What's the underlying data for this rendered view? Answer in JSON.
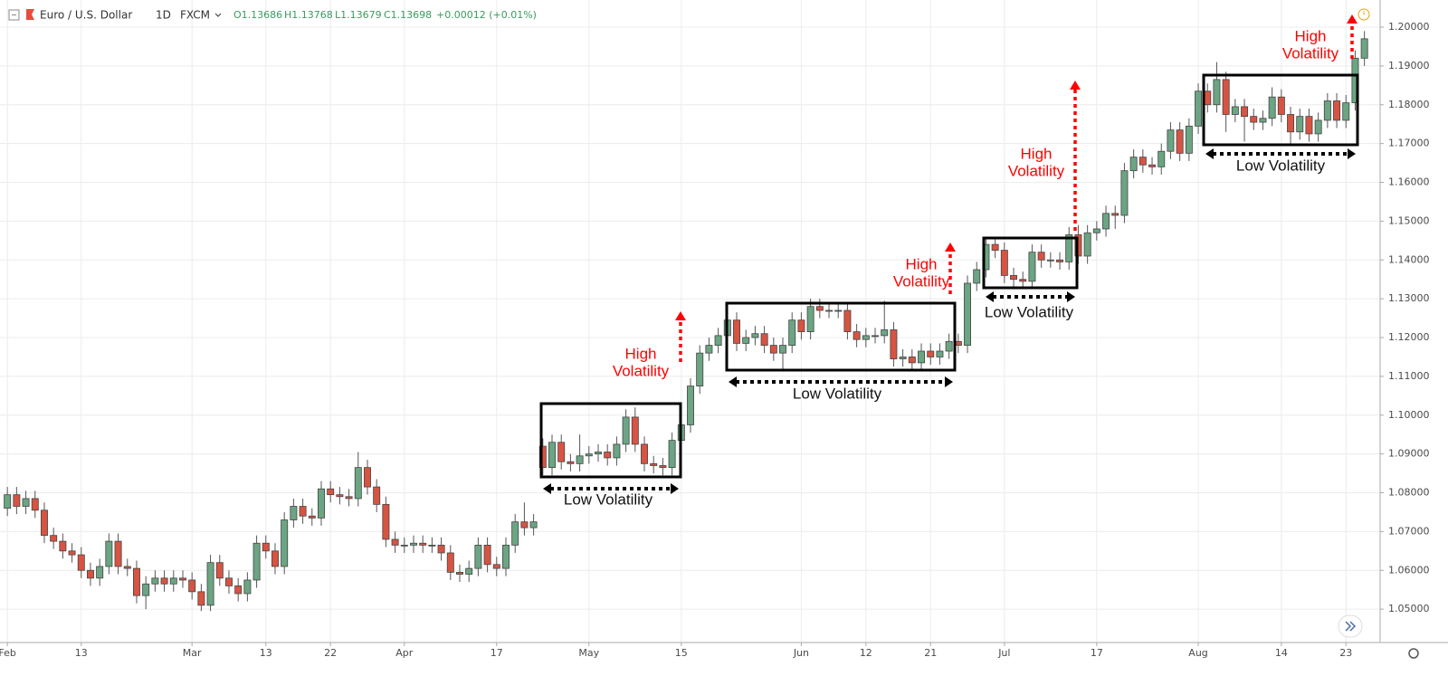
{
  "chart_data": {
    "type": "candlestick",
    "header": {
      "symbol": "Euro / U.S. Dollar",
      "interval": "1D",
      "source": "FXCM",
      "open": "O1.13686",
      "high": "H1.13768",
      "low": "L1.13679",
      "close": "C1.13698",
      "change": "+0.00012 (+0.01%)"
    },
    "up_color": "#6ba583",
    "down_color": "#d75442",
    "grid": true,
    "xlim": [
      -0.8,
      148.7
    ],
    "xticks": [
      {
        "value": 0,
        "label": "Feb"
      },
      {
        "value": 8,
        "label": "13"
      },
      {
        "value": 20,
        "label": "Mar"
      },
      {
        "value": 28,
        "label": "13"
      },
      {
        "value": 35,
        "label": "22"
      },
      {
        "value": 43,
        "label": "Apr"
      },
      {
        "value": 53,
        "label": "17"
      },
      {
        "value": 63,
        "label": "May"
      },
      {
        "value": 73,
        "label": "15"
      },
      {
        "value": 86,
        "label": "Jun"
      },
      {
        "value": 93,
        "label": "12"
      },
      {
        "value": 100,
        "label": "21"
      },
      {
        "value": 108,
        "label": "Jul"
      },
      {
        "value": 118,
        "label": "17"
      },
      {
        "value": 129,
        "label": "Aug"
      },
      {
        "value": 138,
        "label": "14"
      },
      {
        "value": 145,
        "label": "23"
      }
    ],
    "ylim": [
      1.0414,
      1.207
    ],
    "yticks": [
      {
        "value": 1.05,
        "label": "1.05000"
      },
      {
        "value": 1.06,
        "label": "1.06000"
      },
      {
        "value": 1.07,
        "label": "1.07000"
      },
      {
        "value": 1.08,
        "label": "1.08000"
      },
      {
        "value": 1.09,
        "label": "1.09000"
      },
      {
        "value": 1.1,
        "label": "1.10000"
      },
      {
        "value": 1.11,
        "label": "1.11000"
      },
      {
        "value": 1.12,
        "label": "1.12000"
      },
      {
        "value": 1.13,
        "label": "1.13000"
      },
      {
        "value": 1.14,
        "label": "1.14000"
      },
      {
        "value": 1.15,
        "label": "1.15000"
      },
      {
        "value": 1.16,
        "label": "1.16000"
      },
      {
        "value": 1.17,
        "label": "1.17000"
      },
      {
        "value": 1.18,
        "label": "1.18000"
      },
      {
        "value": 1.19,
        "label": "1.19000"
      },
      {
        "value": 1.2,
        "label": "1.20000"
      }
    ],
    "open": [
      1.076,
      1.0795,
      1.0765,
      1.0785,
      1.0755,
      1.069,
      1.0675,
      1.065,
      1.064,
      1.06,
      1.058,
      1.061,
      1.0675,
      1.061,
      1.0605,
      1.0535,
      1.0565,
      1.058,
      1.0565,
      1.058,
      1.0575,
      1.0545,
      1.051,
      1.062,
      1.058,
      1.056,
      1.054,
      1.0575,
      1.067,
      1.065,
      1.061,
      1.073,
      1.0765,
      1.074,
      1.0735,
      1.081,
      1.0795,
      1.079,
      1.0785,
      1.0865,
      1.0815,
      1.077,
      1.068,
      1.0665,
      1.0665,
      1.067,
      1.0665,
      1.0665,
      1.0645,
      1.0595,
      1.059,
      1.0605,
      1.0665,
      1.0615,
      1.0605,
      1.0665,
      1.0725,
      1.071,
      1.092,
      1.0865,
      1.093,
      1.088,
      1.0875,
      1.0895,
      1.09,
      1.0905,
      1.089,
      1.0925,
      1.0995,
      1.0925,
      1.0875,
      1.087,
      1.0865,
      1.0935,
      1.0975,
      1.1075,
      1.116,
      1.118,
      1.1205,
      1.1245,
      1.1185,
      1.12,
      1.121,
      1.118,
      1.116,
      1.118,
      1.1245,
      1.1215,
      1.128,
      1.127,
      1.127,
      1.127,
      1.1215,
      1.1195,
      1.1205,
      1.1205,
      1.122,
      1.1145,
      1.115,
      1.1135,
      1.1165,
      1.115,
      1.1165,
      1.119,
      1.118,
      1.134,
      1.1375,
      1.144,
      1.1425,
      1.136,
      1.135,
      1.1345,
      1.142,
      1.14,
      1.14,
      1.1395,
      1.1465,
      1.141,
      1.147,
      1.148,
      1.152,
      1.1515,
      1.163,
      1.1665,
      1.1645,
      1.164,
      1.168,
      1.1735,
      1.1675,
      1.1745,
      1.1835,
      1.18,
      1.1865,
      1.1775,
      1.1795,
      1.177,
      1.1755,
      1.1765,
      1.182,
      1.1775,
      1.173,
      1.177,
      1.1725,
      1.176,
      1.181,
      1.176,
      1.1805,
      1.192
    ],
    "high": [
      1.0815,
      1.0815,
      1.0805,
      1.0805,
      1.0775,
      1.071,
      1.0695,
      1.067,
      1.066,
      1.062,
      1.063,
      1.0695,
      1.0695,
      1.063,
      1.0625,
      1.0585,
      1.06,
      1.06,
      1.06,
      1.06,
      1.0595,
      1.0565,
      1.064,
      1.064,
      1.06,
      1.058,
      1.0595,
      1.069,
      1.069,
      1.067,
      1.075,
      1.0785,
      1.0785,
      1.076,
      1.083,
      1.083,
      1.0815,
      1.081,
      1.0905,
      1.0885,
      1.0835,
      1.079,
      1.07,
      1.0685,
      1.069,
      1.069,
      1.0685,
      1.0685,
      1.0665,
      1.0615,
      1.0625,
      1.0685,
      1.0685,
      1.0635,
      1.0685,
      1.0745,
      1.0775,
      1.0745,
      1.094,
      1.095,
      1.095,
      1.09,
      1.095,
      1.092,
      1.0925,
      1.0925,
      1.0945,
      1.1015,
      1.102,
      1.0945,
      1.0895,
      1.089,
      1.0955,
      1.0995,
      1.1095,
      1.118,
      1.12,
      1.1225,
      1.1265,
      1.1265,
      1.122,
      1.123,
      1.123,
      1.12,
      1.12,
      1.1265,
      1.1265,
      1.13,
      1.13,
      1.129,
      1.129,
      1.129,
      1.1235,
      1.1225,
      1.1225,
      1.1295,
      1.124,
      1.117,
      1.117,
      1.1185,
      1.1185,
      1.1185,
      1.121,
      1.121,
      1.136,
      1.1395,
      1.146,
      1.146,
      1.1445,
      1.138,
      1.137,
      1.144,
      1.144,
      1.142,
      1.142,
      1.1485,
      1.149,
      1.149,
      1.15,
      1.154,
      1.154,
      1.165,
      1.1685,
      1.1685,
      1.1665,
      1.17,
      1.1755,
      1.1755,
      1.1765,
      1.1855,
      1.1855,
      1.191,
      1.1885,
      1.1815,
      1.1815,
      1.179,
      1.1785,
      1.1845,
      1.184,
      1.1795,
      1.179,
      1.179,
      1.178,
      1.183,
      1.183,
      1.1825,
      1.194,
      1.199
    ],
    "low": [
      1.074,
      1.0745,
      1.0745,
      1.0735,
      1.067,
      1.0655,
      1.063,
      1.062,
      1.058,
      1.056,
      1.056,
      1.059,
      1.059,
      1.0585,
      1.0515,
      1.05,
      1.0545,
      1.0545,
      1.0545,
      1.0555,
      1.0525,
      1.0495,
      1.0495,
      1.056,
      1.054,
      1.052,
      1.052,
      1.0555,
      1.063,
      1.059,
      1.059,
      1.071,
      1.072,
      1.0715,
      1.0715,
      1.0775,
      1.077,
      1.0765,
      1.0765,
      1.0795,
      1.075,
      1.066,
      1.0645,
      1.0645,
      1.0645,
      1.0645,
      1.0645,
      1.0625,
      1.0575,
      1.057,
      1.057,
      1.0585,
      1.0595,
      1.0585,
      1.0585,
      1.0645,
      1.069,
      1.069,
      1.0845,
      1.0845,
      1.086,
      1.0855,
      1.0855,
      1.0875,
      1.088,
      1.087,
      1.087,
      1.0905,
      1.0905,
      1.0855,
      1.085,
      1.0845,
      1.0845,
      1.0915,
      1.0955,
      1.1055,
      1.114,
      1.116,
      1.1185,
      1.1165,
      1.1165,
      1.118,
      1.116,
      1.114,
      1.1115,
      1.116,
      1.1195,
      1.1195,
      1.125,
      1.125,
      1.125,
      1.1195,
      1.1175,
      1.1175,
      1.1185,
      1.1185,
      1.1125,
      1.1125,
      1.1115,
      1.1115,
      1.113,
      1.113,
      1.1145,
      1.116,
      1.116,
      1.132,
      1.1355,
      1.1405,
      1.134,
      1.133,
      1.1325,
      1.1325,
      1.138,
      1.138,
      1.1375,
      1.1375,
      1.139,
      1.139,
      1.145,
      1.146,
      1.148,
      1.1495,
      1.161,
      1.1625,
      1.162,
      1.162,
      1.166,
      1.1655,
      1.1655,
      1.1725,
      1.178,
      1.178,
      1.173,
      1.1755,
      1.1705,
      1.1735,
      1.1735,
      1.1745,
      1.1755,
      1.17,
      1.171,
      1.1705,
      1.1705,
      1.174,
      1.174,
      1.174,
      1.1785,
      1.19
    ],
    "close": [
      1.0795,
      1.0765,
      1.0785,
      1.0755,
      1.069,
      1.0675,
      1.065,
      1.064,
      1.06,
      1.058,
      1.061,
      1.0675,
      1.061,
      1.0605,
      1.0535,
      1.0565,
      1.058,
      1.0565,
      1.058,
      1.0575,
      1.0545,
      1.051,
      1.062,
      1.058,
      1.056,
      1.054,
      1.0575,
      1.067,
      1.065,
      1.061,
      1.073,
      1.0765,
      1.074,
      1.0735,
      1.081,
      1.0795,
      1.079,
      1.0785,
      1.0865,
      1.0815,
      1.077,
      1.068,
      1.0665,
      1.0665,
      1.067,
      1.0665,
      1.0665,
      1.0645,
      1.0595,
      1.059,
      1.0605,
      1.0665,
      1.0615,
      1.0605,
      1.0665,
      1.0725,
      1.071,
      1.0725,
      1.0865,
      1.093,
      1.088,
      1.0875,
      1.0895,
      1.09,
      1.0905,
      1.089,
      1.0925,
      1.0995,
      1.0925,
      1.0875,
      1.087,
      1.0865,
      1.0935,
      1.0975,
      1.1075,
      1.116,
      1.118,
      1.1205,
      1.1245,
      1.1185,
      1.12,
      1.121,
      1.118,
      1.116,
      1.118,
      1.1245,
      1.1215,
      1.128,
      1.127,
      1.127,
      1.127,
      1.1215,
      1.1195,
      1.1205,
      1.1205,
      1.122,
      1.1145,
      1.115,
      1.1135,
      1.1165,
      1.115,
      1.1165,
      1.119,
      1.118,
      1.134,
      1.1375,
      1.144,
      1.1425,
      1.136,
      1.135,
      1.1345,
      1.142,
      1.14,
      1.14,
      1.1395,
      1.1465,
      1.141,
      1.147,
      1.148,
      1.152,
      1.1515,
      1.163,
      1.1665,
      1.1645,
      1.164,
      1.168,
      1.1735,
      1.1675,
      1.1745,
      1.1835,
      1.18,
      1.1865,
      1.1775,
      1.1795,
      1.177,
      1.1755,
      1.1765,
      1.182,
      1.1775,
      1.173,
      1.177,
      1.1725,
      1.176,
      1.181,
      1.176,
      1.1805,
      1.192,
      1.197
    ],
    "annotations": [
      {
        "text": "Low Volatility"
      },
      {
        "lines": [
          "High",
          "Volatility"
        ]
      },
      {
        "text": "Low Volatility"
      },
      {
        "lines": [
          "High",
          "Volatility"
        ]
      },
      {
        "text": "Low Volatility"
      },
      {
        "lines": [
          "High",
          "Volatility"
        ]
      },
      {
        "text": "Low Volatility"
      },
      {
        "lines": [
          "High",
          "Volatility"
        ]
      }
    ]
  }
}
